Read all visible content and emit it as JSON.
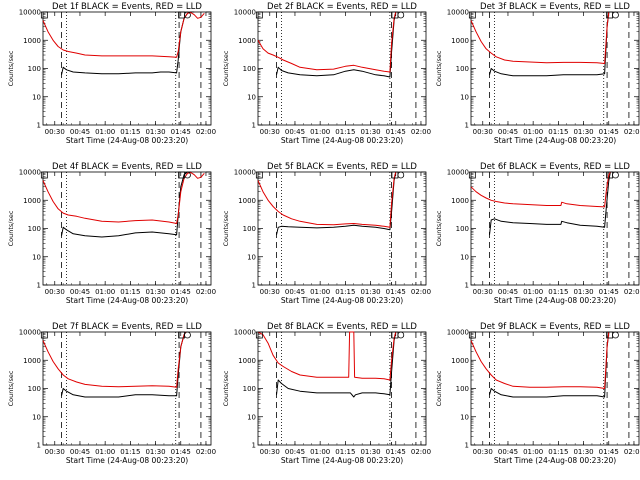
{
  "figure": {
    "ylabel": "Counts/sec",
    "xlabel": "Start Time (24-Aug-08 00:23:20)",
    "xtick_labels": [
      "00:30",
      "00:45",
      "01:00",
      "01:15",
      "01:30",
      "01:45",
      "02:00"
    ],
    "ytick_labels": [
      "1",
      "10",
      "100",
      "1000",
      "10000"
    ],
    "colors": {
      "events": "#000000",
      "lld": "#e00000",
      "axes": "#000000"
    }
  },
  "chart_data": [
    {
      "type": "line",
      "title": "Det 1f BLACK = Events, RED = LLD",
      "x_unit": "minutes after 00:23:20",
      "xlim": [
        0,
        100
      ],
      "ylim": [
        1,
        10000
      ],
      "yscale": "log",
      "series": [
        {
          "name": "Events",
          "color": "#000000",
          "x": [
            11,
            12,
            14,
            18,
            25,
            35,
            45,
            55,
            65,
            70,
            75,
            79.5,
            80.5,
            81,
            82,
            84,
            86,
            88,
            90
          ],
          "values": [
            60,
            110,
            90,
            75,
            70,
            65,
            65,
            70,
            70,
            75,
            75,
            70,
            200,
            500,
            2000,
            6000,
            9000,
            10000,
            10000
          ]
        },
        {
          "name": "LLD",
          "color": "#e00000",
          "x": [
            0,
            3,
            6,
            9,
            12,
            15,
            20,
            25,
            35,
            45,
            55,
            65,
            75,
            79.5,
            80.5,
            82,
            84,
            86,
            88,
            90,
            92,
            94,
            96
          ],
          "values": [
            5000,
            2000,
            1000,
            600,
            450,
            400,
            350,
            300,
            280,
            280,
            280,
            280,
            260,
            250,
            400,
            2000,
            6000,
            9000,
            9500,
            8000,
            6000,
            6500,
            9000
          ]
        }
      ],
      "dashed_lines_x": [
        11,
        81,
        94
      ],
      "dotted_lines_x": [
        14,
        79
      ],
      "markers": [
        {
          "shape": "square",
          "x": 0.8,
          "y": 10000
        },
        {
          "shape": "square",
          "x": 82.5,
          "y": 10000
        },
        {
          "shape": "circle",
          "x": 86,
          "y": 10000
        }
      ]
    },
    {
      "type": "line",
      "title": "Det 2f BLACK = Events, RED = LLD",
      "x_unit": "minutes after 00:23:20",
      "xlim": [
        0,
        100
      ],
      "ylim": [
        1,
        10000
      ],
      "yscale": "log",
      "series": [
        {
          "name": "Events",
          "color": "#000000",
          "x": [
            11,
            12,
            14,
            18,
            25,
            35,
            45,
            52,
            57,
            62,
            70,
            75,
            78.5,
            79.5,
            81,
            82
          ],
          "values": [
            60,
            110,
            85,
            70,
            60,
            55,
            60,
            80,
            90,
            80,
            60,
            55,
            50,
            400,
            5000,
            10000
          ]
        },
        {
          "name": "LLD",
          "color": "#e00000",
          "x": [
            0,
            3,
            6,
            9,
            12,
            15,
            20,
            25,
            35,
            45,
            52,
            57,
            62,
            70,
            75,
            78.5,
            79.5,
            81,
            82
          ],
          "values": [
            1000,
            500,
            350,
            300,
            250,
            200,
            150,
            110,
            90,
            95,
            120,
            130,
            110,
            90,
            80,
            75,
            800,
            6000,
            10000
          ]
        }
      ],
      "dashed_lines_x": [
        11,
        79.5,
        94
      ],
      "dotted_lines_x": [
        14,
        78.5
      ],
      "markers": [
        {
          "shape": "square",
          "x": 0.8,
          "y": 10000
        },
        {
          "shape": "square",
          "x": 81.5,
          "y": 10000
        },
        {
          "shape": "circle",
          "x": 85,
          "y": 10000
        }
      ]
    },
    {
      "type": "line",
      "title": "Det 3f BLACK = Events, RED = LLD",
      "x_unit": "minutes after 00:23:20",
      "xlim": [
        0,
        100
      ],
      "ylim": [
        1,
        10000
      ],
      "yscale": "log",
      "series": [
        {
          "name": "Events",
          "color": "#000000",
          "x": [
            11,
            12,
            14,
            18,
            25,
            35,
            45,
            55,
            65,
            75,
            79.5,
            81,
            82
          ],
          "values": [
            60,
            100,
            80,
            65,
            55,
            55,
            55,
            60,
            60,
            60,
            65,
            3000,
            10000
          ]
        },
        {
          "name": "LLD",
          "color": "#e00000",
          "x": [
            0,
            3,
            6,
            9,
            12,
            15,
            20,
            25,
            35,
            45,
            55,
            65,
            75,
            79.5,
            81,
            82
          ],
          "values": [
            5000,
            2000,
            900,
            500,
            350,
            260,
            200,
            180,
            170,
            160,
            165,
            165,
            160,
            150,
            3000,
            10000
          ]
        }
      ],
      "dashed_lines_x": [
        11,
        81,
        94
      ],
      "dotted_lines_x": [
        14,
        79
      ],
      "markers": [
        {
          "shape": "square",
          "x": 0.8,
          "y": 10000
        },
        {
          "shape": "square",
          "x": 82.5,
          "y": 10000
        },
        {
          "shape": "circle",
          "x": 86,
          "y": 10000
        }
      ]
    },
    {
      "type": "line",
      "title": "Det 4f BLACK = Events, RED = LLD",
      "x_unit": "minutes after 00:23:20",
      "xlim": [
        0,
        100
      ],
      "ylim": [
        1,
        10000
      ],
      "yscale": "log",
      "series": [
        {
          "name": "Events",
          "color": "#000000",
          "x": [
            11,
            12,
            14,
            18,
            25,
            35,
            45,
            55,
            65,
            75,
            79.5,
            80.5,
            82,
            84,
            86,
            88
          ],
          "values": [
            55,
            110,
            90,
            65,
            55,
            50,
            55,
            70,
            75,
            65,
            60,
            300,
            3000,
            8000,
            10000,
            10000
          ]
        },
        {
          "name": "LLD",
          "color": "#e00000",
          "x": [
            0,
            3,
            6,
            9,
            12,
            15,
            20,
            25,
            35,
            45,
            55,
            65,
            75,
            79.5,
            80.5,
            82,
            84,
            86,
            88,
            90,
            92,
            94,
            96
          ],
          "values": [
            5000,
            2000,
            900,
            500,
            350,
            300,
            270,
            230,
            180,
            170,
            190,
            200,
            170,
            150,
            300,
            2000,
            6000,
            9000,
            9500,
            8000,
            6000,
            6500,
            9000
          ]
        }
      ],
      "dashed_lines_x": [
        11,
        81,
        94
      ],
      "dotted_lines_x": [
        14,
        79
      ],
      "markers": [
        {
          "shape": "square",
          "x": 0.8,
          "y": 10000
        },
        {
          "shape": "square",
          "x": 82.5,
          "y": 10000
        },
        {
          "shape": "circle",
          "x": 86,
          "y": 10000
        }
      ]
    },
    {
      "type": "line",
      "title": "Det 5f BLACK = Events, RED = LLD",
      "x_unit": "minutes after 00:23:20",
      "xlim": [
        0,
        100
      ],
      "ylim": [
        1,
        10000
      ],
      "yscale": "log",
      "series": [
        {
          "name": "Events",
          "color": "#000000",
          "x": [
            11,
            12,
            14,
            18,
            25,
            35,
            45,
            52,
            57,
            62,
            70,
            75,
            78.5,
            79.5,
            81,
            82
          ],
          "values": [
            60,
            110,
            120,
            115,
            110,
            105,
            110,
            120,
            130,
            120,
            110,
            100,
            90,
            400,
            5000,
            10000
          ]
        },
        {
          "name": "LLD",
          "color": "#e00000",
          "x": [
            0,
            3,
            6,
            9,
            12,
            15,
            20,
            25,
            35,
            45,
            52,
            57,
            62,
            70,
            75,
            78.5,
            79.5,
            81,
            82
          ],
          "values": [
            5000,
            2000,
            1000,
            600,
            400,
            300,
            220,
            180,
            140,
            135,
            145,
            150,
            140,
            130,
            120,
            110,
            800,
            6000,
            10000
          ]
        }
      ],
      "dashed_lines_x": [
        11,
        79.5,
        94
      ],
      "dotted_lines_x": [
        14,
        78.5
      ],
      "markers": [
        {
          "shape": "square",
          "x": 0.8,
          "y": 10000
        },
        {
          "shape": "square",
          "x": 81.5,
          "y": 10000
        },
        {
          "shape": "circle",
          "x": 85,
          "y": 10000
        }
      ]
    },
    {
      "type": "line",
      "title": "Det 6f BLACK = Events, RED = LLD",
      "x_unit": "minutes after 00:23:20",
      "xlim": [
        0,
        100
      ],
      "ylim": [
        1,
        10000
      ],
      "yscale": "log",
      "series": [
        {
          "name": "Events",
          "color": "#000000",
          "x": [
            11,
            12,
            14,
            18,
            25,
            35,
            45,
            53.5,
            54,
            57,
            65,
            75,
            79.5,
            80.5,
            82,
            83
          ],
          "values": [
            60,
            200,
            220,
            180,
            160,
            150,
            140,
            140,
            180,
            160,
            130,
            120,
            110,
            500,
            5000,
            10000
          ]
        },
        {
          "name": "LLD",
          "color": "#e00000",
          "x": [
            0,
            3,
            6,
            9,
            12,
            15,
            20,
            25,
            35,
            45,
            53.5,
            54,
            57,
            65,
            75,
            79.5,
            80.5,
            82,
            83
          ],
          "values": [
            3000,
            2000,
            1500,
            1200,
            1000,
            900,
            800,
            750,
            700,
            650,
            650,
            850,
            750,
            650,
            600,
            580,
            2000,
            8000,
            10000
          ]
        }
      ],
      "dashed_lines_x": [
        11,
        81,
        94
      ],
      "dotted_lines_x": [
        14,
        79
      ],
      "markers": [
        {
          "shape": "square",
          "x": 0.8,
          "y": 10000
        },
        {
          "shape": "square",
          "x": 82.5,
          "y": 10000
        },
        {
          "shape": "circle",
          "x": 86,
          "y": 10000
        }
      ]
    },
    {
      "type": "line",
      "title": "Det 7f BLACK = Events, RED = LLD",
      "x_unit": "minutes after 00:23:20",
      "xlim": [
        0,
        100
      ],
      "ylim": [
        1,
        10000
      ],
      "yscale": "log",
      "series": [
        {
          "name": "Events",
          "color": "#000000",
          "x": [
            11,
            12,
            14,
            18,
            25,
            35,
            45,
            55,
            65,
            75,
            79.5,
            80.5,
            82,
            84,
            85
          ],
          "values": [
            55,
            100,
            80,
            60,
            50,
            50,
            50,
            60,
            60,
            55,
            55,
            300,
            3000,
            8000,
            10000
          ]
        },
        {
          "name": "LLD",
          "color": "#e00000",
          "x": [
            0,
            3,
            6,
            9,
            12,
            15,
            20,
            25,
            35,
            45,
            55,
            65,
            75,
            79.5,
            80.5,
            82,
            84,
            85
          ],
          "values": [
            5000,
            2000,
            900,
            500,
            300,
            220,
            170,
            140,
            120,
            115,
            120,
            125,
            120,
            110,
            500,
            3000,
            8000,
            10000
          ]
        }
      ],
      "dashed_lines_x": [
        11,
        81,
        94
      ],
      "dotted_lines_x": [
        14,
        79
      ],
      "markers": [
        {
          "shape": "square",
          "x": 0.8,
          "y": 10000
        },
        {
          "shape": "square",
          "x": 82.5,
          "y": 10000
        },
        {
          "shape": "circle",
          "x": 86,
          "y": 10000
        }
      ]
    },
    {
      "type": "line",
      "title": "Det 8f BLACK = Events, RED = LLD",
      "x_unit": "minutes after 00:23:20",
      "xlim": [
        0,
        100
      ],
      "ylim": [
        1,
        10000
      ],
      "yscale": "log",
      "series": [
        {
          "name": "Events",
          "color": "#000000",
          "x": [
            11,
            12,
            14,
            18,
            25,
            35,
            45,
            55,
            57,
            58,
            62,
            70,
            75,
            78.5,
            79.5,
            81,
            82
          ],
          "values": [
            60,
            200,
            150,
            100,
            80,
            70,
            70,
            70,
            50,
            60,
            70,
            70,
            65,
            60,
            400,
            5000,
            10000
          ]
        },
        {
          "name": "LLD",
          "color": "#e00000",
          "x": [
            0,
            3,
            6,
            9,
            12,
            15,
            20,
            25,
            35,
            45,
            54,
            54.5,
            57,
            57.5,
            62,
            70,
            75,
            78.5,
            79.5,
            81,
            82
          ],
          "values": [
            10000,
            8000,
            4000,
            1500,
            800,
            600,
            400,
            300,
            250,
            250,
            250,
            10000,
            10000,
            250,
            230,
            230,
            220,
            200,
            1000,
            6000,
            10000
          ]
        }
      ],
      "dashed_lines_x": [
        11,
        79.5,
        94
      ],
      "dotted_lines_x": [
        14,
        78.5
      ],
      "markers": [
        {
          "shape": "square",
          "x": 0.8,
          "y": 10000
        },
        {
          "shape": "square",
          "x": 81.5,
          "y": 10000
        },
        {
          "shape": "circle",
          "x": 85,
          "y": 10000
        }
      ]
    },
    {
      "type": "line",
      "title": "Det 9f BLACK = Events, RED = LLD",
      "x_unit": "minutes after 00:23:20",
      "xlim": [
        0,
        100
      ],
      "ylim": [
        1,
        10000
      ],
      "yscale": "log",
      "series": [
        {
          "name": "Events",
          "color": "#000000",
          "x": [
            11,
            12,
            14,
            18,
            25,
            35,
            45,
            55,
            65,
            75,
            79.5,
            81,
            82
          ],
          "values": [
            60,
            100,
            80,
            60,
            50,
            50,
            50,
            55,
            55,
            55,
            50,
            3000,
            10000
          ]
        },
        {
          "name": "LLD",
          "color": "#e00000",
          "x": [
            0,
            3,
            6,
            9,
            12,
            15,
            20,
            25,
            35,
            45,
            55,
            65,
            75,
            79.5,
            81,
            82
          ],
          "values": [
            5000,
            2000,
            900,
            500,
            300,
            200,
            150,
            120,
            110,
            110,
            115,
            115,
            110,
            100,
            3000,
            10000
          ]
        }
      ],
      "dashed_lines_x": [
        11,
        81,
        94
      ],
      "dotted_lines_x": [
        14,
        79
      ],
      "markers": [
        {
          "shape": "square",
          "x": 0.8,
          "y": 10000
        },
        {
          "shape": "square",
          "x": 82.5,
          "y": 10000
        },
        {
          "shape": "circle",
          "x": 86,
          "y": 10000
        }
      ]
    }
  ]
}
